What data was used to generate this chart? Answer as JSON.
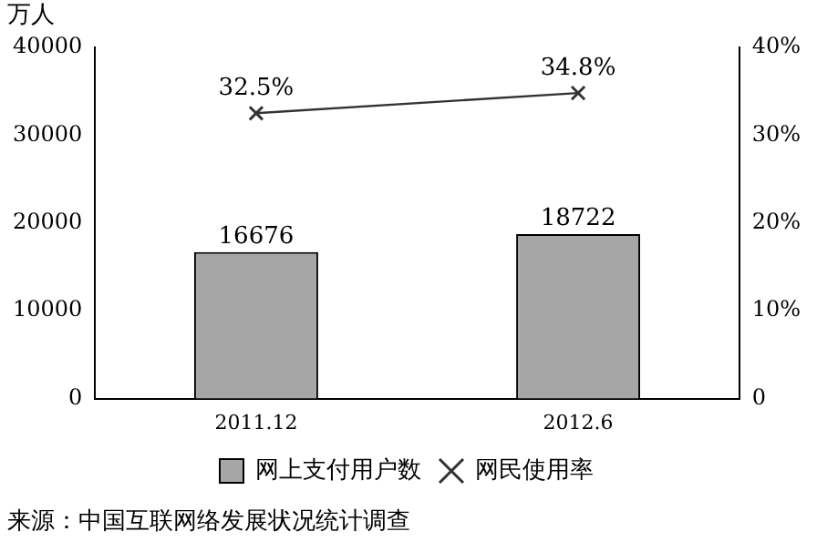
{
  "chart_data": {
    "type": "bar",
    "ylabel": "万人",
    "categories": [
      "2011.12",
      "2012.6"
    ],
    "series": [
      {
        "name": "网上支付用户数",
        "color": "#a6a6a6",
        "values": [
          16676,
          18722
        ],
        "value_labels": [
          "16676",
          "18722"
        ]
      },
      {
        "name": "网民使用率",
        "type": "line",
        "axis": "y2",
        "color": "#333333",
        "values": [
          32.5,
          34.8
        ],
        "value_labels": [
          "32.5%",
          "34.8%"
        ],
        "marker": "cross"
      }
    ],
    "ylim": [
      0,
      40000
    ],
    "yticks": [
      0,
      10000,
      20000,
      30000,
      40000
    ],
    "y2lim": [
      0,
      40
    ],
    "y2ticks": [
      0,
      {
        "value": 10,
        "label": "10%"
      },
      {
        "value": 20,
        "label": "20%"
      },
      {
        "value": 30,
        "label": "30%"
      },
      {
        "value": 40,
        "label": "40%"
      }
    ],
    "grid": false,
    "legend": "bottom",
    "annotations": [
      "来源：中国互联网络发展状况统计调查"
    ]
  }
}
